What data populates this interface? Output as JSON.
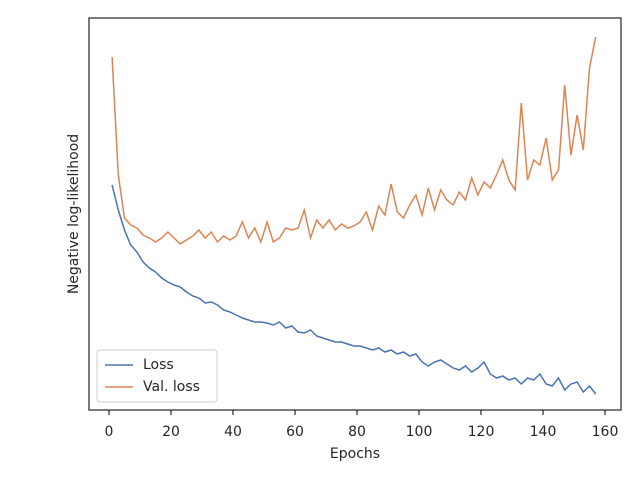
{
  "chart_data": {
    "type": "line",
    "xlabel": "Epochs",
    "ylabel": "Negative log-likelihood",
    "x": [
      1,
      3,
      5,
      7,
      9,
      11,
      13,
      15,
      17,
      19,
      21,
      23,
      25,
      27,
      29,
      31,
      33,
      35,
      37,
      39,
      41,
      43,
      45,
      47,
      49,
      51,
      53,
      55,
      57,
      59,
      61,
      63,
      65,
      67,
      69,
      71,
      73,
      75,
      77,
      79,
      81,
      83,
      85,
      87,
      89,
      91,
      93,
      95,
      97,
      99,
      101,
      103,
      105,
      107,
      109,
      111,
      113,
      115,
      117,
      119,
      121,
      123,
      125,
      127,
      129,
      131,
      133,
      135,
      137,
      139,
      141,
      143,
      145,
      147,
      149,
      151,
      153,
      155,
      157
    ],
    "series": [
      {
        "name": "Loss",
        "color": "#4c72b0",
        "values": [
          2.25,
          2.0,
          1.8,
          1.65,
          1.58,
          1.48,
          1.42,
          1.38,
          1.32,
          1.28,
          1.25,
          1.23,
          1.18,
          1.14,
          1.12,
          1.07,
          1.08,
          1.05,
          1.0,
          0.98,
          0.95,
          0.92,
          0.9,
          0.88,
          0.88,
          0.87,
          0.85,
          0.88,
          0.82,
          0.84,
          0.78,
          0.77,
          0.8,
          0.74,
          0.72,
          0.7,
          0.68,
          0.68,
          0.66,
          0.64,
          0.64,
          0.62,
          0.6,
          0.62,
          0.58,
          0.6,
          0.56,
          0.58,
          0.54,
          0.56,
          0.48,
          0.44,
          0.48,
          0.5,
          0.46,
          0.42,
          0.4,
          0.44,
          0.38,
          0.42,
          0.48,
          0.36,
          0.32,
          0.34,
          0.3,
          0.32,
          0.26,
          0.32,
          0.3,
          0.36,
          0.26,
          0.24,
          0.32,
          0.2,
          0.26,
          0.28,
          0.18,
          0.24,
          0.16
        ]
      },
      {
        "name": "Val. loss",
        "color": "#dd8452",
        "values": [
          3.53,
          2.35,
          1.92,
          1.85,
          1.82,
          1.75,
          1.72,
          1.68,
          1.72,
          1.78,
          1.72,
          1.66,
          1.7,
          1.74,
          1.8,
          1.72,
          1.78,
          1.68,
          1.74,
          1.7,
          1.74,
          1.88,
          1.72,
          1.82,
          1.68,
          1.88,
          1.68,
          1.72,
          1.82,
          1.8,
          1.82,
          2.0,
          1.72,
          1.9,
          1.82,
          1.9,
          1.8,
          1.86,
          1.82,
          1.84,
          1.88,
          1.98,
          1.8,
          2.04,
          1.95,
          2.26,
          1.98,
          1.92,
          2.05,
          2.15,
          1.95,
          2.22,
          2.0,
          2.2,
          2.1,
          2.05,
          2.18,
          2.1,
          2.32,
          2.15,
          2.28,
          2.22,
          2.35,
          2.5,
          2.3,
          2.2,
          3.07,
          2.3,
          2.5,
          2.45,
          2.72,
          2.3,
          2.4,
          3.25,
          2.55,
          2.95,
          2.6,
          3.42,
          3.73
        ]
      }
    ],
    "xlim": [
      -6.45,
      165.16
    ],
    "xticks": [
      0,
      20,
      40,
      60,
      80,
      100,
      120,
      140,
      160
    ],
    "ylim": [
      0,
      3.92
    ],
    "legend": "lower left"
  }
}
